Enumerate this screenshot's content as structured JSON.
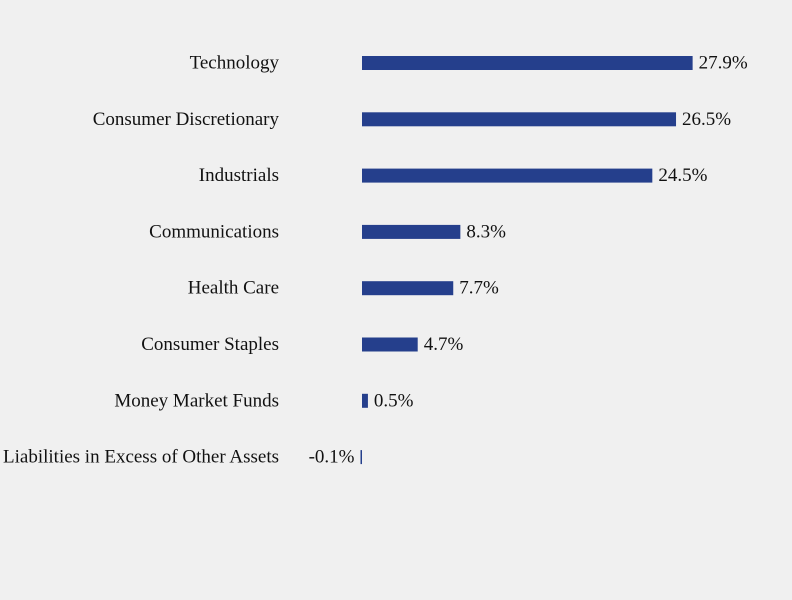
{
  "chart_data": {
    "type": "bar",
    "orientation": "horizontal",
    "categories": [
      "Technology",
      "Consumer Discretionary",
      "Industrials",
      "Communications",
      "Health Care",
      "Consumer Staples",
      "Money Market Funds",
      "Liabilities in Excess of Other Assets"
    ],
    "values": [
      27.9,
      26.5,
      24.5,
      8.3,
      7.7,
      4.7,
      0.5,
      -0.1
    ],
    "value_labels": [
      "27.9%",
      "26.5%",
      "24.5%",
      "8.3%",
      "7.7%",
      "4.7%",
      "0.5%",
      "-0.1%"
    ],
    "unit": "%",
    "bar_color": "#253f8c",
    "background_color": "#f0f0f0",
    "grid": false,
    "axes_visible": false,
    "legend": "none"
  }
}
